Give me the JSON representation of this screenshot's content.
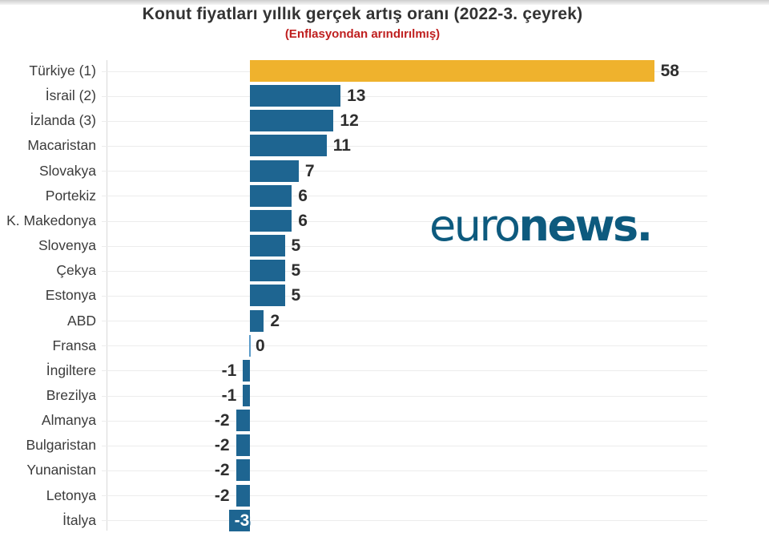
{
  "header": {
    "title": "Konut fiyatları yıllık gerçek artış oranı (2022-3. çeyrek)",
    "subtitle": "(Enflasyondan arındırılmış)",
    "title_color": "#333333",
    "subtitle_color": "#bf1f1f"
  },
  "watermark": {
    "brand_light": "euro",
    "brand_bold": "news",
    "brand_dot": ".",
    "color": "#0d5a7e"
  },
  "chart_data": {
    "type": "bar",
    "orientation": "horizontal",
    "title": "Konut fiyatları yıllık gerçek artış oranı (2022-3. çeyrek)",
    "subtitle": "(Enflasyondan arındırılmış)",
    "categories": [
      "Türkiye (1)",
      "İsrail (2)",
      "İzlanda (3)",
      "Macaristan",
      "Slovakya",
      "Portekiz",
      "K. Makedonya",
      "Slovenya",
      "Çekya",
      "Estonya",
      "ABD",
      "Fransa",
      "İngiltere",
      "Brezilya",
      "Almanya",
      "Bulgaristan",
      "Yunanistan",
      "Letonya",
      "İtalya"
    ],
    "values": [
      58,
      13,
      12,
      11,
      7,
      6,
      6,
      5,
      5,
      5,
      2,
      0,
      -1,
      -1,
      -2,
      -2,
      -2,
      -2,
      -3
    ],
    "value_labels": [
      "58",
      "13",
      "12",
      "11",
      "7",
      "6",
      "6",
      "5",
      "5",
      "5",
      "2",
      "0",
      "-1",
      "-1",
      "-2",
      "-2",
      "-2",
      "-2",
      "-3"
    ],
    "xlim": [
      -3,
      65
    ],
    "grid": "horizontal tick lines per category, vertical baseline at left of plot",
    "legend": "none",
    "highlight_category": "Türkiye (1)",
    "unit": "percent (yıllık gerçek artış, %)",
    "colors": {
      "bar": "#1e6591",
      "highlight": "#efb22d",
      "zero_bar": "#5b9bc9",
      "value_label": "#2e2e2e",
      "value_label_on_bar": "#ffffff",
      "gridline": "#ececec",
      "axis_line": "#d9d9d9",
      "category_label": "#3b3b3b"
    }
  }
}
